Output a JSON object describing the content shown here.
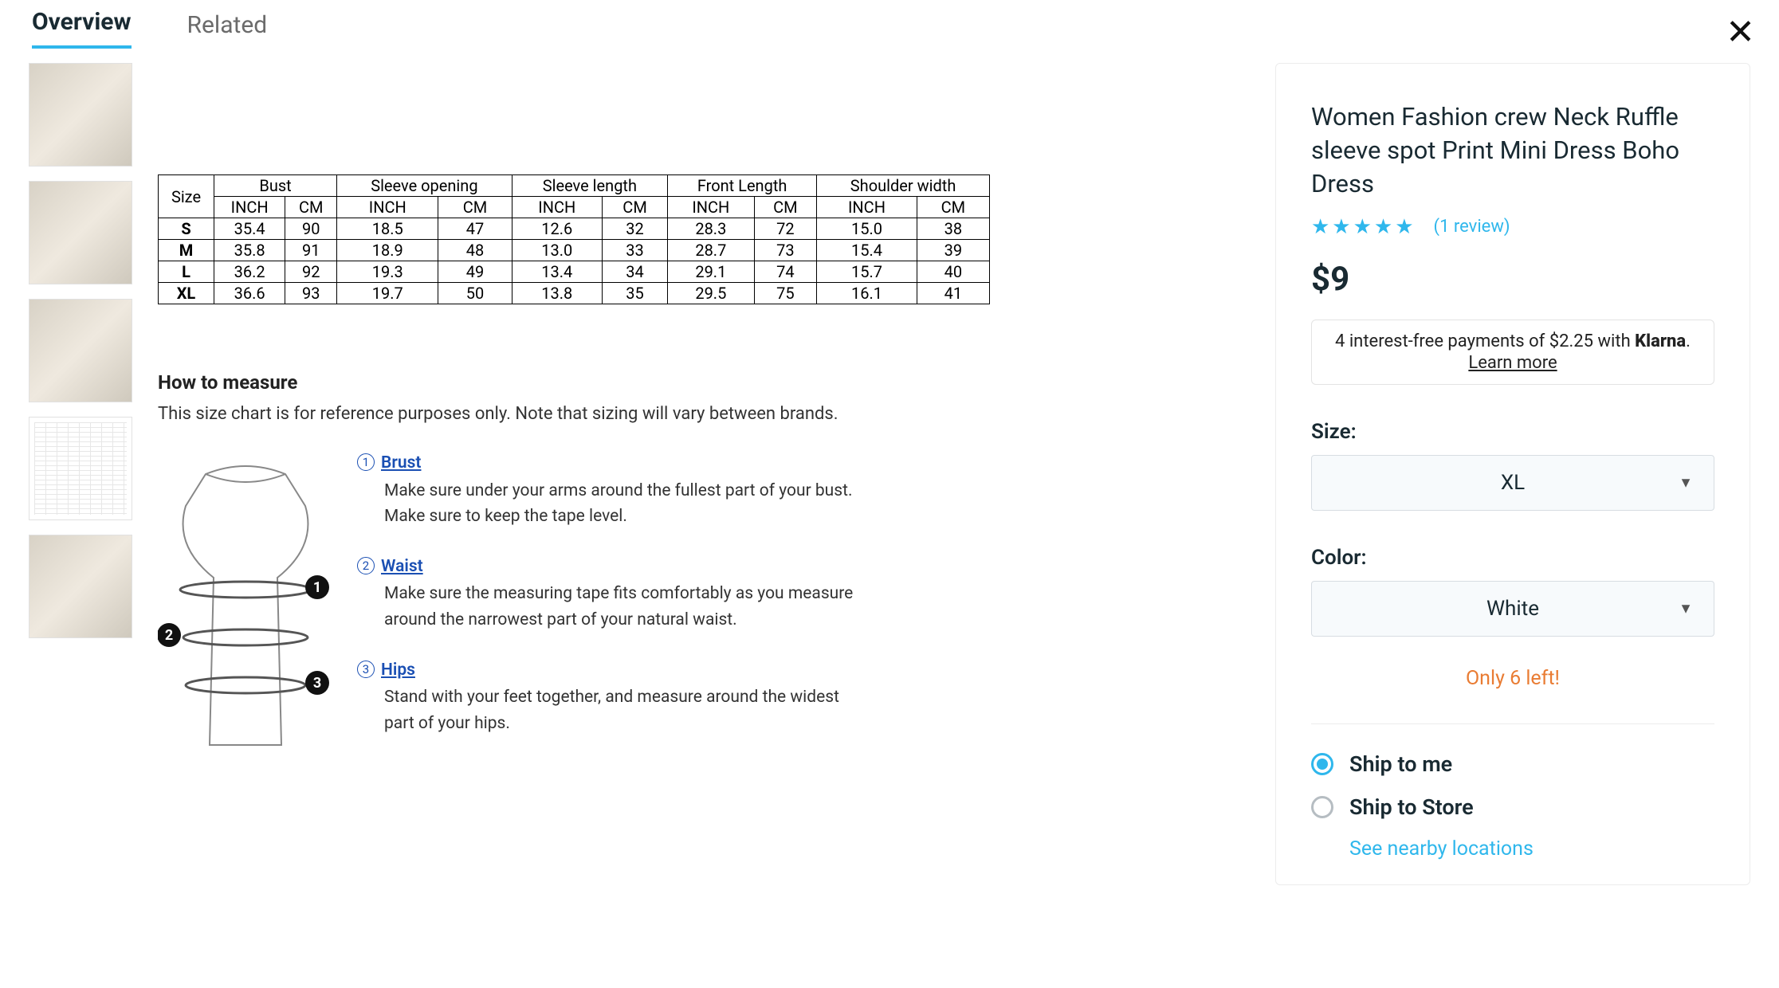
{
  "accent_color": "#2fb7ec",
  "tabs": {
    "overview": "Overview",
    "related": "Related"
  },
  "size_chart": {
    "type": "table",
    "size_header": "Size",
    "measure_groups": [
      "Bust",
      "Sleeve opening",
      "Sleeve length",
      "Front Length",
      "Shoulder width"
    ],
    "unit_labels": {
      "inch": "INCH",
      "cm": "CM"
    },
    "rows": [
      {
        "size": "S",
        "bust_in": "35.4",
        "bust_cm": "90",
        "so_in": "18.5",
        "so_cm": "47",
        "sl_in": "12.6",
        "sl_cm": "32",
        "fl_in": "28.3",
        "fl_cm": "72",
        "sw_in": "15.0",
        "sw_cm": "38"
      },
      {
        "size": "M",
        "bust_in": "35.8",
        "bust_cm": "91",
        "so_in": "18.9",
        "so_cm": "48",
        "sl_in": "13.0",
        "sl_cm": "33",
        "fl_in": "28.7",
        "fl_cm": "73",
        "sw_in": "15.4",
        "sw_cm": "39"
      },
      {
        "size": "L",
        "bust_in": "36.2",
        "bust_cm": "92",
        "so_in": "19.3",
        "so_cm": "49",
        "sl_in": "13.4",
        "sl_cm": "34",
        "fl_in": "29.1",
        "fl_cm": "74",
        "sw_in": "15.7",
        "sw_cm": "40"
      },
      {
        "size": "XL",
        "bust_in": "36.6",
        "bust_cm": "93",
        "so_in": "19.7",
        "so_cm": "50",
        "sl_in": "13.8",
        "sl_cm": "35",
        "fl_in": "29.5",
        "fl_cm": "75",
        "sw_in": "16.1",
        "sw_cm": "41"
      }
    ]
  },
  "how_to": {
    "heading": "How to measure",
    "sub": "This size chart is for reference purposes only. Note that sizing will vary between brands.",
    "items": [
      {
        "num": "1",
        "term": "Brust",
        "desc": "Make sure under your arms around the fullest part of your bust. Make sure to keep the tape level."
      },
      {
        "num": "2",
        "term": "Waist",
        "desc": "Make sure the measuring tape fits comfortably as you measure around the narrowest part of your natural waist."
      },
      {
        "num": "3",
        "term": "Hips",
        "desc": "Stand with your feet together, and measure around the widest part of your hips."
      }
    ]
  },
  "product": {
    "title": "Women Fashion crew Neck Ruffle sleeve spot Print Mini Dress Boho Dress",
    "rating_stars": 5,
    "review_text": "(1 review)",
    "price": "$9",
    "klarna": {
      "text_prefix": "4 interest-free payments of $2.25 with ",
      "logo": "Klarna",
      "text_suffix": ".",
      "learn": "Learn more"
    },
    "size_label": "Size:",
    "size_value": "XL",
    "color_label": "Color:",
    "color_value": "White",
    "stock_msg": "Only 6 left!",
    "ship_me": "Ship to me",
    "ship_store": "Ship to Store",
    "nearby": "See nearby locations"
  }
}
